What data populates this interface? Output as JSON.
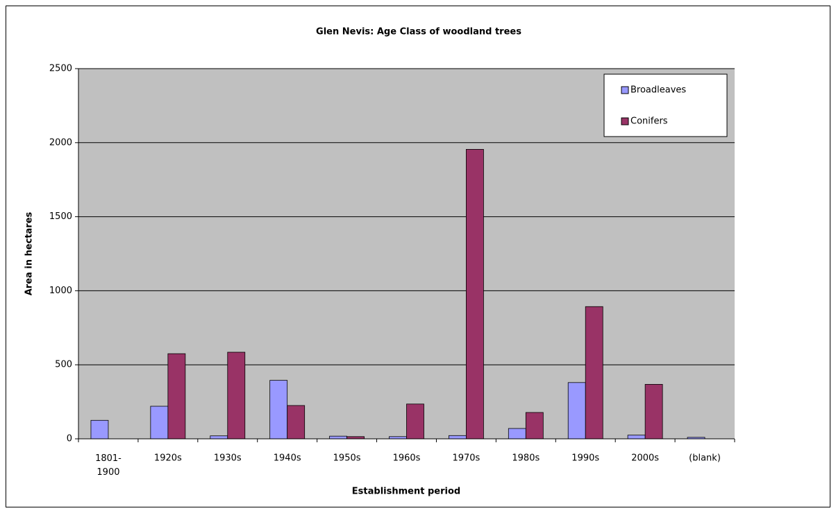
{
  "chart_data": {
    "type": "bar",
    "title": "Glen Nevis: Age Class of woodland trees",
    "xlabel": "Establishment period",
    "ylabel": "Area in hectares",
    "categories": [
      "1801-1900",
      "1920s",
      "1930s",
      "1940s",
      "1950s",
      "1960s",
      "1970s",
      "1980s",
      "1990s",
      "2000s",
      "(blank)"
    ],
    "series": [
      {
        "name": "Broadleaves",
        "color": "#9999ff",
        "values": [
          125,
          220,
          20,
          395,
          18,
          15,
          22,
          70,
          380,
          25,
          10
        ]
      },
      {
        "name": "Conifers",
        "color": "#993366",
        "values": [
          null,
          575,
          585,
          225,
          15,
          235,
          1955,
          178,
          893,
          368,
          null
        ]
      }
    ],
    "ylim": [
      0,
      2500
    ],
    "yticks": [
      0,
      500,
      1000,
      1500,
      2000,
      2500
    ],
    "grid": true,
    "legend": "top-right",
    "plot_background": "#c0c0c0"
  }
}
